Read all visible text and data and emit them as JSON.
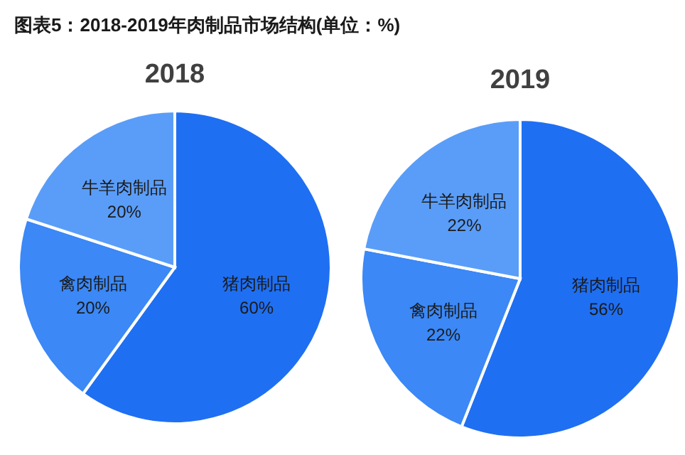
{
  "chart_data": [
    {
      "type": "pie",
      "title": "2018",
      "annotations": [
        "图表5：2018-2019年肉制品市场结构(单位：%)"
      ],
      "categories": [
        "猪肉制品",
        "禽肉制品",
        "牛羊肉制品"
      ],
      "values": [
        60,
        20,
        20
      ],
      "value_labels": [
        "60%",
        "20%",
        "20%"
      ],
      "colors": [
        "#1f6ff2",
        "#3b88f6",
        "#5a9df8"
      ]
    },
    {
      "type": "pie",
      "title": "2019",
      "categories": [
        "猪肉制品",
        "禽肉制品",
        "牛羊肉制品"
      ],
      "values": [
        56,
        22,
        22
      ],
      "value_labels": [
        "56%",
        "22%",
        "22%"
      ],
      "colors": [
        "#1f6ff2",
        "#3b88f6",
        "#5a9df8"
      ]
    }
  ]
}
